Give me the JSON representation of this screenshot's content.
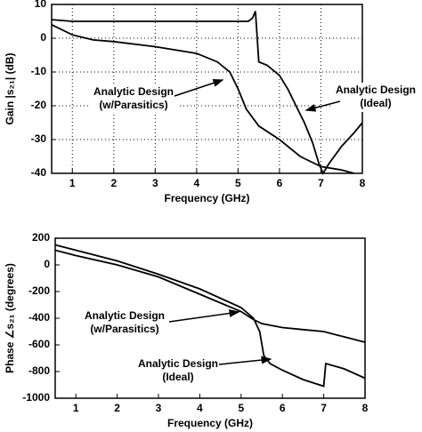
{
  "chart_data": [
    {
      "type": "line",
      "ylabel": "Gain |s₂₁| (dB)",
      "xlabel": "Frequency (GHz)",
      "xlim": [
        0.5,
        8
      ],
      "ylim": [
        -40,
        10
      ],
      "xticks": [
        1,
        2,
        3,
        4,
        5,
        6,
        7,
        8
      ],
      "yticks": [
        10,
        0,
        -10,
        -20,
        -30,
        -40
      ],
      "grid": true,
      "series": [
        {
          "color": "#000000",
          "x": [
            0.5,
            1,
            2,
            3,
            4,
            4.5,
            5,
            5.25,
            5.35,
            5.42,
            5.5,
            5.7,
            6,
            6.2,
            6.4,
            6.6,
            6.8,
            6.95,
            7.05,
            7.2,
            7.5,
            7.8,
            8
          ],
          "values": [
            5.5,
            5,
            5,
            5,
            5,
            5,
            5,
            5,
            6,
            8,
            -7,
            -8,
            -11,
            -15,
            -20,
            -25,
            -31,
            -37,
            -40,
            -37,
            -32,
            -28,
            -25
          ]
        },
        {
          "color": "#000000",
          "x": [
            0.5,
            1,
            1.5,
            2,
            3,
            4,
            4.5,
            4.8,
            5,
            5.2,
            5.5,
            6,
            6.5,
            7,
            7.5,
            7.8
          ],
          "values": [
            4,
            1,
            -0.5,
            -1,
            -2.5,
            -4.5,
            -7,
            -10,
            -15,
            -21,
            -26,
            -30,
            -35,
            -38,
            -39,
            -40
          ]
        }
      ],
      "annotations": [
        {
          "lines": [
            "Analytic Design",
            "(w/Parasitics)"
          ]
        },
        {
          "lines": [
            "Analytic Design",
            "(Ideal)"
          ]
        }
      ]
    },
    {
      "type": "line",
      "ylabel": "Phase ∠s₂₁ (degrees)",
      "xlabel": "Frequency (GHz)",
      "xlim": [
        0.5,
        8
      ],
      "ylim": [
        -1000,
        200
      ],
      "xticks": [
        1,
        2,
        3,
        4,
        5,
        6,
        7,
        8
      ],
      "yticks": [
        200,
        0,
        -200,
        -400,
        -600,
        -800,
        -1000
      ],
      "grid": false,
      "series": [
        {
          "color": "#000000",
          "x": [
            0.5,
            1,
            2,
            3,
            4,
            5,
            5.3,
            5.5,
            6,
            6.5,
            7,
            7.5,
            8
          ],
          "values": [
            110,
            70,
            0,
            -90,
            -220,
            -350,
            -410,
            -440,
            -470,
            -485,
            -500,
            -540,
            -580
          ]
        },
        {
          "color": "#000000",
          "x": [
            0.5,
            1,
            2,
            3,
            4,
            5,
            5.3,
            5.45,
            5.55,
            5.7,
            6,
            6.5,
            7,
            7.05,
            7.5,
            8
          ],
          "values": [
            150,
            110,
            30,
            -70,
            -180,
            -320,
            -400,
            -500,
            -680,
            -740,
            -790,
            -860,
            -910,
            -740,
            -780,
            -850
          ]
        }
      ],
      "annotations": [
        {
          "lines": [
            "Analytic Design",
            "(w/Parasitics)"
          ]
        },
        {
          "lines": [
            "Analytic Design",
            "(Ideal)"
          ]
        }
      ]
    }
  ]
}
